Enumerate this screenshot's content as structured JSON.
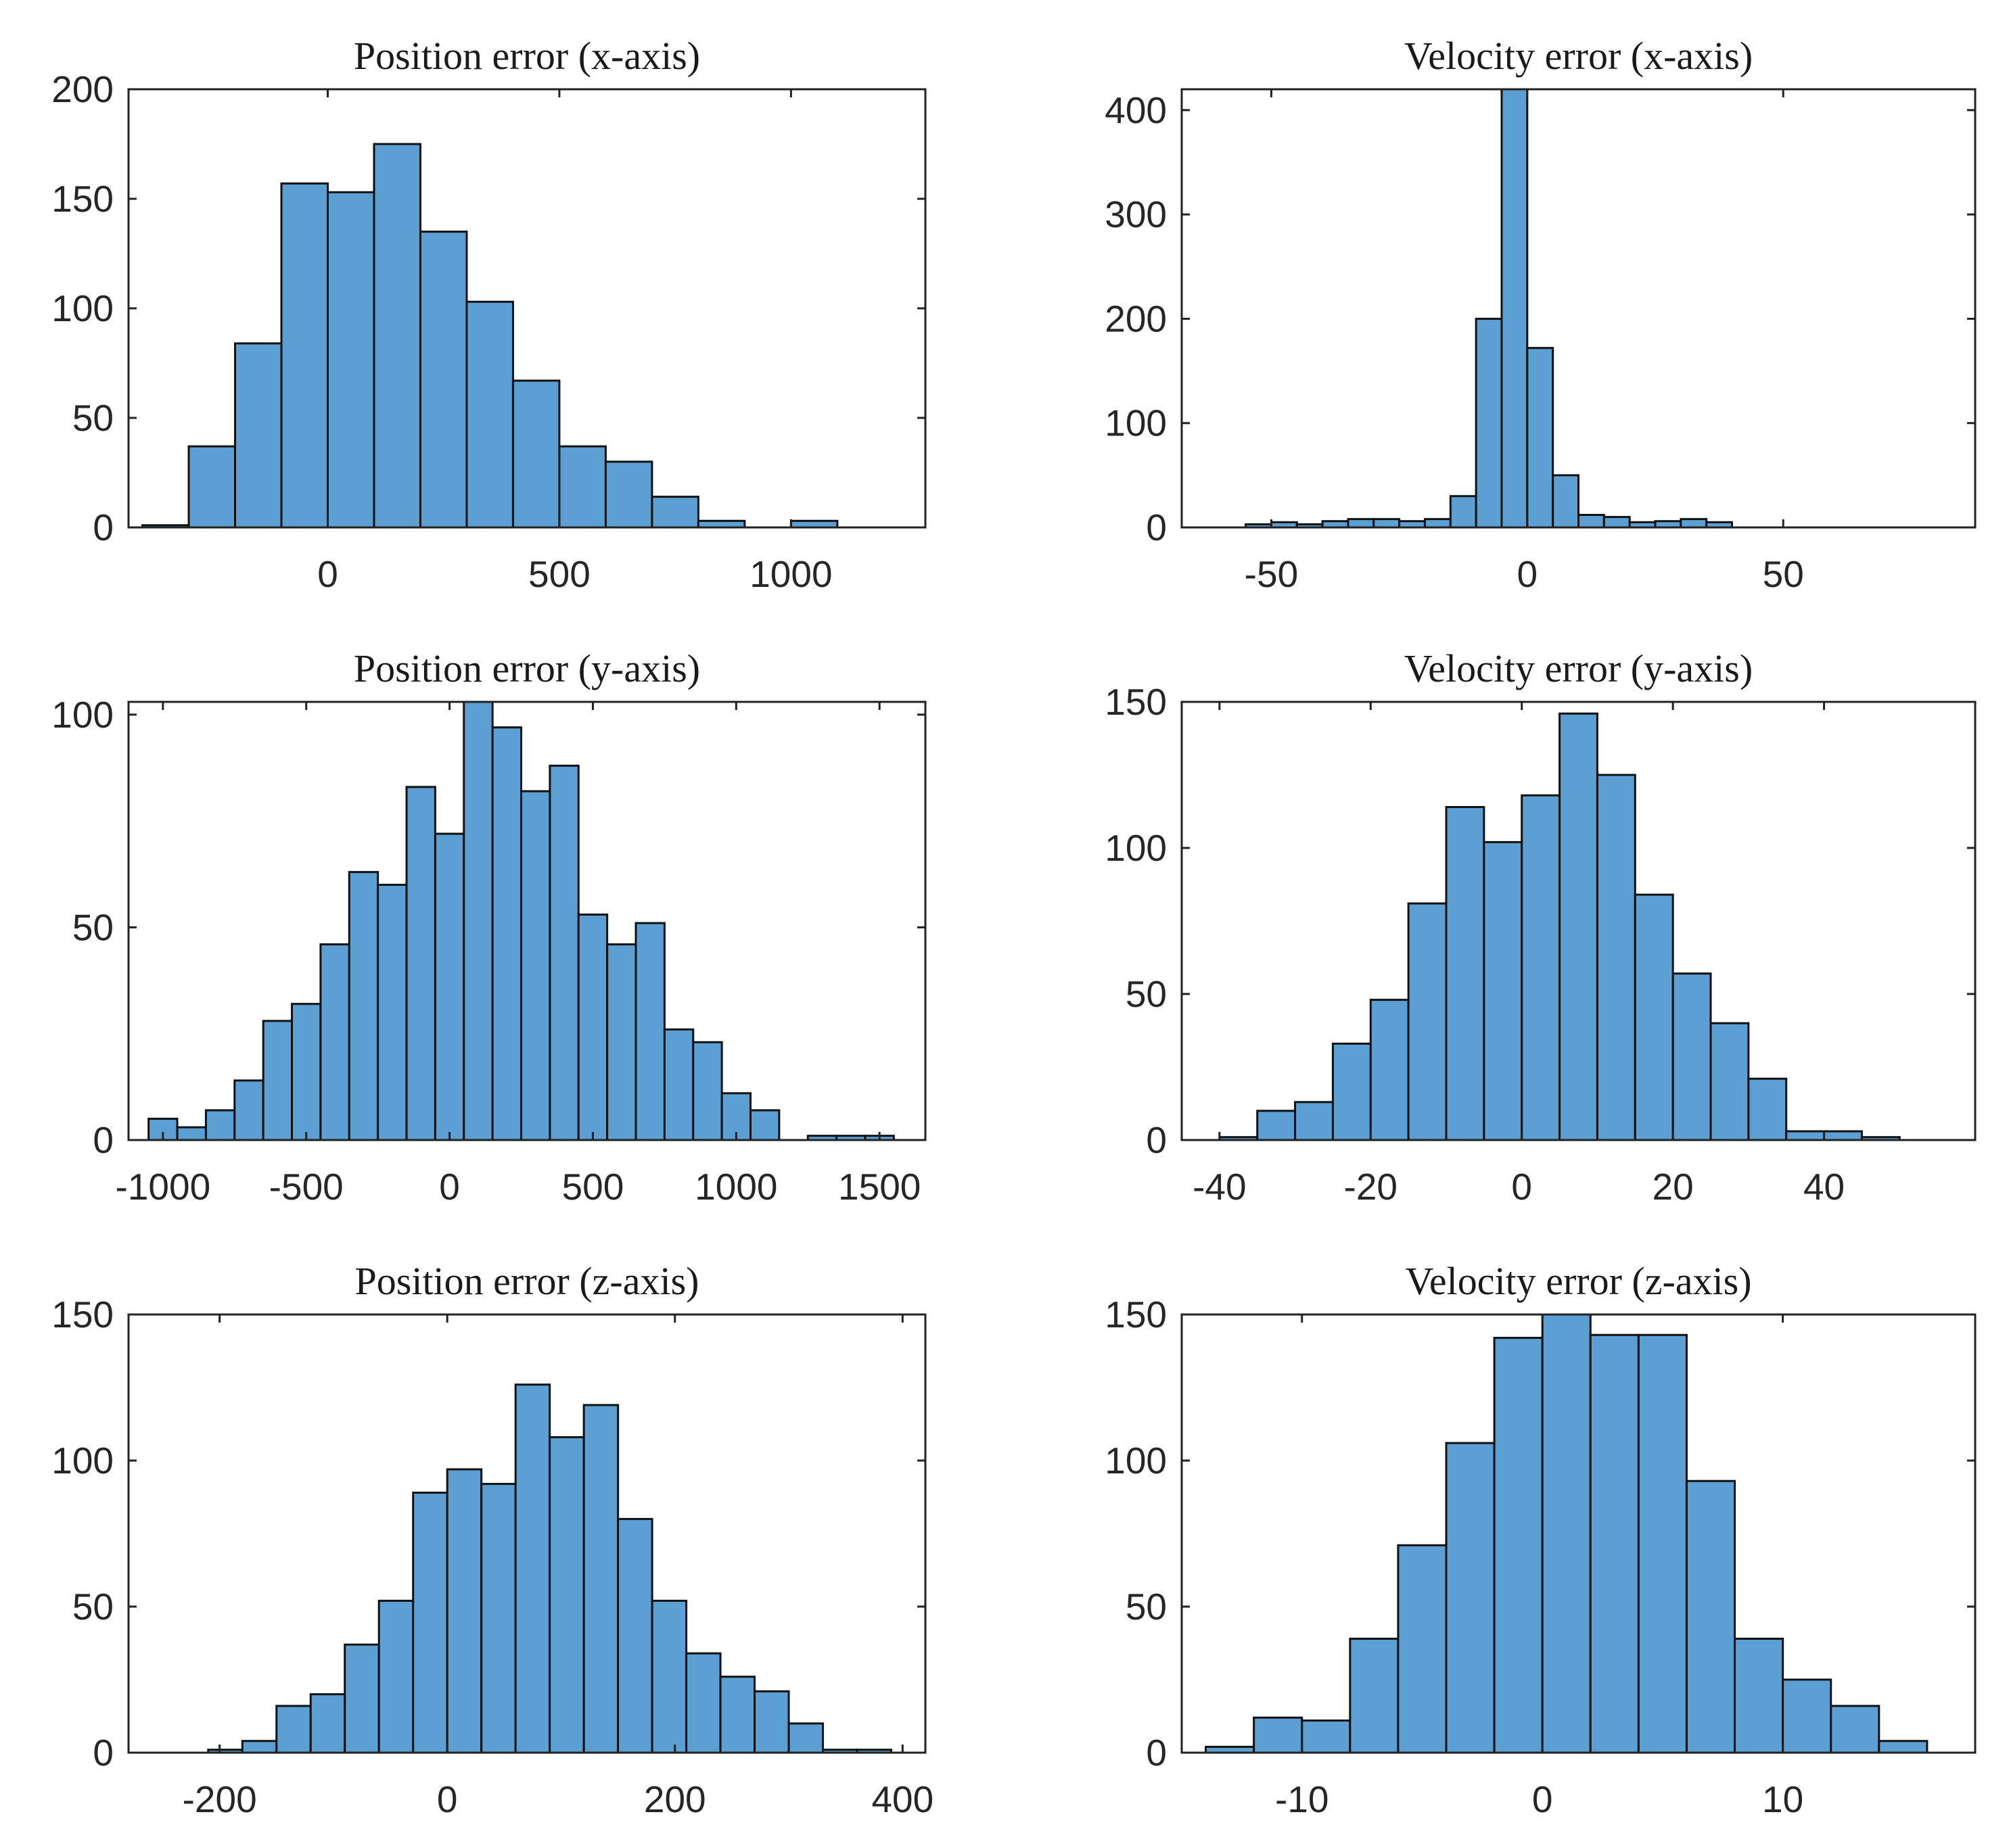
{
  "colors": {
    "bar_fill": "#5b9fd3",
    "bar_edge": "#111111",
    "axes": "#222222",
    "background": "#ffffff"
  },
  "chart_data": [
    {
      "type": "bar",
      "title": "Position error (x-axis)",
      "xlabel": "",
      "ylabel": "",
      "xlim": [
        -430,
        1290
      ],
      "ylim": [
        0,
        200
      ],
      "xticks": [
        0,
        500,
        1000
      ],
      "xtick_labels": [
        "0",
        "500",
        "1000"
      ],
      "yticks": [
        0,
        50,
        100,
        150,
        200
      ],
      "ytick_labels": [
        "0",
        "50",
        "100",
        "150",
        "200"
      ],
      "bin_edges": [
        -400,
        -300,
        -200,
        -100,
        0,
        100,
        200,
        300,
        400,
        500,
        600,
        700,
        800,
        900,
        1000,
        1100
      ],
      "counts": [
        1,
        37,
        84,
        157,
        153,
        175,
        135,
        103,
        67,
        37,
        30,
        14,
        3,
        0,
        3
      ]
    },
    {
      "type": "bar",
      "title": "Velocity error (x-axis)",
      "xlabel": "",
      "ylabel": "",
      "xlim": [
        -67.5,
        87.5
      ],
      "ylim": [
        0,
        420
      ],
      "xticks": [
        -50,
        0,
        50
      ],
      "xtick_labels": [
        "-50",
        "0",
        "50"
      ],
      "yticks": [
        0,
        100,
        200,
        300,
        400
      ],
      "ytick_labels": [
        "0",
        "100",
        "200",
        "300",
        "400"
      ],
      "bin_edges": [
        -55,
        -50,
        -45,
        -40,
        -35,
        -30,
        -25,
        -20,
        -15,
        -10,
        -5,
        0,
        5,
        10,
        15,
        20,
        25,
        30,
        35,
        40
      ],
      "counts": [
        3,
        5,
        3,
        6,
        8,
        8,
        6,
        8,
        30,
        200,
        420,
        172,
        50,
        12,
        10,
        5,
        6,
        8,
        5
      ]
    },
    {
      "type": "bar",
      "title": "Position error (y-axis)",
      "xlabel": "",
      "ylabel": "",
      "xlim": [
        -1120,
        1660
      ],
      "ylim": [
        0,
        103
      ],
      "xticks": [
        -1000,
        -500,
        0,
        500,
        1000,
        1500
      ],
      "xtick_labels": [
        "-1000",
        "-500",
        "0",
        "500",
        "1000",
        "1500"
      ],
      "yticks": [
        0,
        50,
        100
      ],
      "ytick_labels": [
        "0",
        "50",
        "100"
      ],
      "bin_edges": [
        -1050,
        -950,
        -850,
        -750,
        -650,
        -550,
        -450,
        -350,
        -250,
        -150,
        -50,
        50,
        150,
        250,
        350,
        450,
        550,
        650,
        750,
        850,
        950,
        1050,
        1150,
        1250,
        1350,
        1450,
        1550
      ],
      "counts": [
        5,
        3,
        7,
        14,
        28,
        32,
        46,
        63,
        60,
        83,
        72,
        103,
        97,
        82,
        88,
        53,
        46,
        51,
        26,
        23,
        11,
        7,
        0,
        1,
        1,
        1
      ]
    },
    {
      "type": "bar",
      "title": "Velocity error (y-axis)",
      "xlabel": "",
      "ylabel": "",
      "xlim": [
        -45,
        60
      ],
      "ylim": [
        0,
        150
      ],
      "xticks": [
        -40,
        -20,
        0,
        20,
        40
      ],
      "xtick_labels": [
        "-40",
        "-20",
        "0",
        "20",
        "40"
      ],
      "yticks": [
        0,
        50,
        100,
        150
      ],
      "ytick_labels": [
        "0",
        "50",
        "100",
        "150"
      ],
      "bin_edges": [
        -40,
        -35,
        -30,
        -25,
        -20,
        -15,
        -10,
        -5,
        0,
        5,
        10,
        15,
        20,
        25,
        30,
        35,
        40,
        45,
        50
      ],
      "counts": [
        1,
        10,
        13,
        33,
        48,
        81,
        114,
        102,
        118,
        146,
        125,
        84,
        57,
        40,
        21,
        3,
        3,
        1
      ]
    },
    {
      "type": "bar",
      "title": "Position error (z-axis)",
      "xlabel": "",
      "ylabel": "",
      "xlim": [
        -280,
        420
      ],
      "ylim": [
        0,
        150
      ],
      "xticks": [
        -200,
        0,
        200,
        400
      ],
      "xtick_labels": [
        "-200",
        "0",
        "200",
        "400"
      ],
      "yticks": [
        0,
        50,
        100,
        150
      ],
      "ytick_labels": [
        "0",
        "50",
        "100",
        "150"
      ],
      "bin_edges": [
        -210,
        -180,
        -150,
        -120,
        -90,
        -60,
        -30,
        0,
        30,
        60,
        90,
        120,
        150,
        180,
        210,
        240,
        270,
        300,
        330,
        360,
        390
      ],
      "counts": [
        1,
        4,
        16,
        20,
        37,
        52,
        89,
        97,
        92,
        126,
        108,
        119,
        80,
        52,
        34,
        26,
        21,
        10,
        1,
        1
      ]
    },
    {
      "type": "bar",
      "title": "Velocity error (z-axis)",
      "xlabel": "",
      "ylabel": "",
      "xlim": [
        -15,
        18
      ],
      "ylim": [
        0,
        150
      ],
      "xticks": [
        -10,
        0,
        10
      ],
      "xtick_labels": [
        "-10",
        "0",
        "10"
      ],
      "yticks": [
        0,
        50,
        100,
        150
      ],
      "ytick_labels": [
        "0",
        "50",
        "100",
        "150"
      ],
      "bin_edges": [
        -14,
        -12,
        -10,
        -8,
        -6,
        -4,
        -2,
        0,
        2,
        4,
        6,
        8,
        10,
        12,
        14,
        16
      ],
      "counts": [
        2,
        12,
        11,
        39,
        71,
        106,
        142,
        150,
        143,
        143,
        93,
        39,
        25,
        16,
        4
      ]
    }
  ]
}
